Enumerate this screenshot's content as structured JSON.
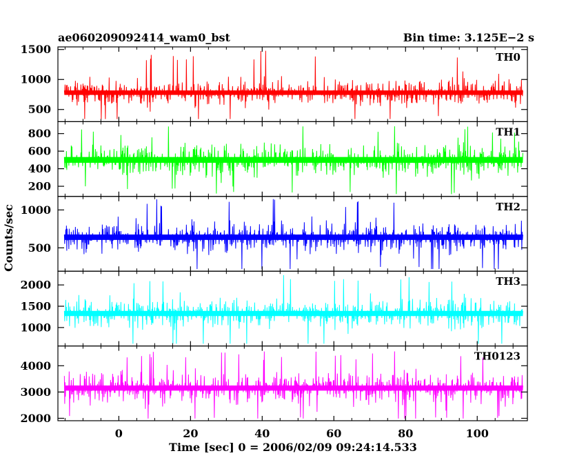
{
  "header": {
    "title": "ae060209092414_wam0_bst",
    "bin_time": "Bin time: 3.125E−2 s"
  },
  "axes": {
    "xlabel": "Time [sec] 0 = 2006/02/09 09:24:14.533",
    "ylabel": "Counts/sec",
    "xlim": [
      -17,
      114
    ],
    "xticks": [
      0,
      20,
      40,
      60,
      80,
      100
    ],
    "xtick_labels": [
      "0",
      "20",
      "40",
      "60",
      "80",
      "100"
    ]
  },
  "chart_data": {
    "type": "line",
    "title": "ae060209092414_wam0_bst",
    "xlabel": "Time [sec] 0 = 2006/02/09 09:24:14.533",
    "ylabel": "Counts/sec",
    "x_range": [
      -15.2,
      112.8
    ],
    "bin_time_s": 0.03125,
    "grid": false,
    "panels": [
      {
        "name": "TH0",
        "color": "#ff0000",
        "ylim": [
          320,
          1520
        ],
        "yticks": [
          500,
          1000,
          1500
        ],
        "ytick_labels": [
          "500",
          "1000",
          "1500"
        ],
        "series_stats": {
          "mean": 780,
          "min": 340,
          "max": 1500
        }
      },
      {
        "name": "TH1",
        "color": "#00ff00",
        "ylim": [
          100,
          920
        ],
        "yticks": [
          200,
          400,
          600,
          800
        ],
        "ytick_labels": [
          "200",
          "400",
          "600",
          "800"
        ],
        "series_stats": {
          "mean": 500,
          "min": 110,
          "max": 900
        }
      },
      {
        "name": "TH2",
        "color": "#0000ff",
        "ylim": [
          210,
          1160
        ],
        "yticks": [
          500,
          1000
        ],
        "ytick_labels": [
          "500",
          "1000"
        ],
        "series_stats": {
          "mean": 640,
          "min": 220,
          "max": 1150
        }
      },
      {
        "name": "TH3",
        "color": "#00ffff",
        "ylim": [
          600,
          2290
        ],
        "yticks": [
          1000,
          1500,
          2000
        ],
        "ytick_labels": [
          "1000",
          "1500",
          "2000"
        ],
        "series_stats": {
          "mean": 1330,
          "min": 620,
          "max": 2250
        }
      },
      {
        "name": "TH0123",
        "color": "#ff00ff",
        "ylim": [
          1960,
          4700
        ],
        "yticks": [
          2000,
          3000,
          4000
        ],
        "ytick_labels": [
          "2000",
          "3000",
          "4000"
        ],
        "series_stats": {
          "mean": 3150,
          "min": 1990,
          "max": 4550
        }
      }
    ]
  }
}
